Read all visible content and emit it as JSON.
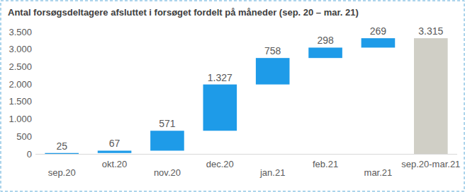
{
  "chart_data": {
    "type": "waterfall",
    "title": "Antal forsøgsdeltagere afsluttet i forsøget fordelt på måneder (sep. 20 – mar. 21)",
    "categories": [
      "sep.20",
      "okt.20",
      "nov.20",
      "dec.20",
      "jan.21",
      "feb.21",
      "mar.21",
      "sep.20-mar.21"
    ],
    "series": [
      {
        "type": "waterfall",
        "color": "#1e9be8",
        "values": [
          25,
          67,
          571,
          1327,
          758,
          298,
          269,
          null
        ],
        "value_labels": [
          "25",
          "67",
          "571",
          "1.327",
          "758",
          "298",
          "269",
          null
        ]
      },
      {
        "type": "bar",
        "color": "#d0cfc6",
        "values": [
          null,
          null,
          null,
          null,
          null,
          null,
          null,
          3315
        ],
        "value_labels": [
          null,
          null,
          null,
          null,
          null,
          null,
          null,
          "3.315"
        ]
      }
    ],
    "ylim": [
      0,
      3500
    ],
    "yticks": [
      0,
      500,
      {
        "value": 1000,
        "label": "1.000"
      },
      {
        "value": 1500,
        "label": "1.500"
      },
      {
        "value": 2000,
        "label": "2.000"
      },
      {
        "value": 2500,
        "label": "2.500"
      },
      {
        "value": 3000,
        "label": "3.000"
      },
      {
        "value": 3500,
        "label": "3.500"
      }
    ],
    "grid": false,
    "data_labels": true
  }
}
